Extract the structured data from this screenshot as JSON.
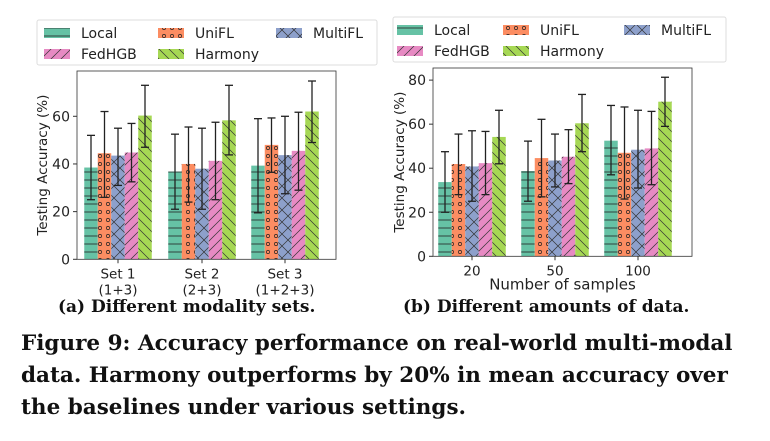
{
  "series_styles": [
    {
      "name": "Local",
      "color": "#66c2a5",
      "hatch": "horizontal"
    },
    {
      "name": "UniFL",
      "color": "#fc8d62",
      "hatch": "dots"
    },
    {
      "name": "MultiFL",
      "color": "#8da0cb",
      "hatch": "crosshatch"
    },
    {
      "name": "FedHGB",
      "color": "#e78ac3",
      "hatch": "forward-diagonal"
    },
    {
      "name": "Harmony",
      "color": "#a6d854",
      "hatch": "back-diagonal"
    }
  ],
  "chart_data": [
    {
      "type": "bar",
      "title": "",
      "xlabel": "",
      "ylabel": "Testing Accuracy (%)",
      "ylim": [
        0,
        79
      ],
      "yticks": [
        0,
        20,
        40,
        60
      ],
      "grid": false,
      "legend": "top",
      "categories": [
        [
          "Set 1",
          "(1+3)"
        ],
        [
          "Set 2",
          "(2+3)"
        ],
        [
          "Set 3",
          "(1+2+3)"
        ]
      ],
      "series": [
        {
          "name": "Local",
          "values": [
            38.5,
            36.8,
            39.3
          ],
          "err_low": [
            25,
            21,
            19.5
          ],
          "err_high": [
            52,
            52.5,
            59
          ]
        },
        {
          "name": "UniFL",
          "values": [
            44.5,
            40,
            48
          ],
          "err_low": [
            26,
            24,
            36.5
          ],
          "err_high": [
            62,
            55.5,
            59.3
          ]
        },
        {
          "name": "MultiFL",
          "values": [
            43.5,
            38,
            43.7
          ],
          "err_low": [
            31,
            21,
            27.5
          ],
          "err_high": [
            55,
            55,
            60
          ]
        },
        {
          "name": "FedHGB",
          "values": [
            44.8,
            41.3,
            45.5
          ],
          "err_low": [
            32.5,
            25,
            29
          ],
          "err_high": [
            57,
            57.5,
            61.7
          ]
        },
        {
          "name": "Harmony",
          "values": [
            60.3,
            58.3,
            62
          ],
          "err_low": [
            47,
            43.8,
            49
          ],
          "err_high": [
            73,
            73,
            74.8
          ]
        }
      ]
    },
    {
      "type": "bar",
      "title": "",
      "xlabel": "Number of samples",
      "ylabel": "Testing Accuracy (%)",
      "ylim": [
        0,
        85.5
      ],
      "yticks": [
        0,
        20,
        40,
        60,
        80
      ],
      "grid": false,
      "legend": "top",
      "categories": [
        [
          "20"
        ],
        [
          "50"
        ],
        [
          "100"
        ]
      ],
      "series": [
        {
          "name": "Local",
          "values": [
            33.7,
            38.7,
            52.5
          ],
          "err_low": [
            20,
            25,
            37
          ],
          "err_high": [
            47.5,
            52.3,
            68.5
          ]
        },
        {
          "name": "UniFL",
          "values": [
            41.9,
            44.6,
            47
          ],
          "err_low": [
            28,
            27,
            26
          ],
          "err_high": [
            55.5,
            62.2,
            67.8
          ]
        },
        {
          "name": "MultiFL",
          "values": [
            40.8,
            43.5,
            48.4
          ],
          "err_low": [
            25,
            31.5,
            31
          ],
          "err_high": [
            57,
            55.5,
            66.3
          ]
        },
        {
          "name": "FedHGB",
          "values": [
            42.3,
            45.2,
            49
          ],
          "err_low": [
            28,
            33,
            32.5
          ],
          "err_high": [
            56.7,
            57.5,
            65.8
          ]
        },
        {
          "name": "Harmony",
          "values": [
            54.2,
            60.4,
            70.2
          ],
          "err_low": [
            42,
            47.5,
            59
          ],
          "err_high": [
            66.3,
            73.5,
            81.3
          ]
        }
      ]
    }
  ],
  "captions": {
    "a": "(a) Different modality sets.",
    "b": "(b) Different amounts of data.",
    "figure": "Figure 9: Accuracy performance on real-world multi-modal data. Harmony outperforms by 20% in mean accuracy over the baselines under various settings."
  }
}
